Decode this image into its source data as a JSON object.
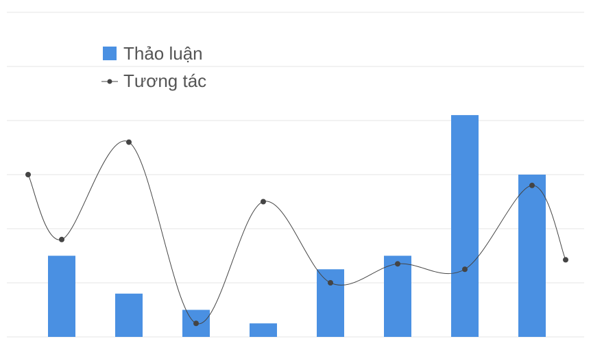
{
  "chart_data": {
    "type": "bar",
    "categories": [
      "",
      "",
      "",
      "",
      "",
      "",
      "",
      ""
    ],
    "ylim": [
      0,
      12
    ],
    "grid": true,
    "legend_position": "top-left",
    "series": [
      {
        "name": "Thảo luận",
        "kind": "bar",
        "color": "#4a90e2",
        "values": [
          3,
          1.6,
          1,
          0.5,
          2.5,
          3,
          8.2,
          6
        ]
      },
      {
        "name": "Tương tác",
        "kind": "line",
        "smooth": true,
        "color": "#444444",
        "x": [
          -0.5,
          0,
          1,
          2,
          3,
          4,
          5,
          6,
          7,
          7.5
        ],
        "values": [
          6,
          3.6,
          7.2,
          0.5,
          5,
          2,
          2.7,
          2.5,
          5.6,
          2.85
        ]
      }
    ]
  }
}
